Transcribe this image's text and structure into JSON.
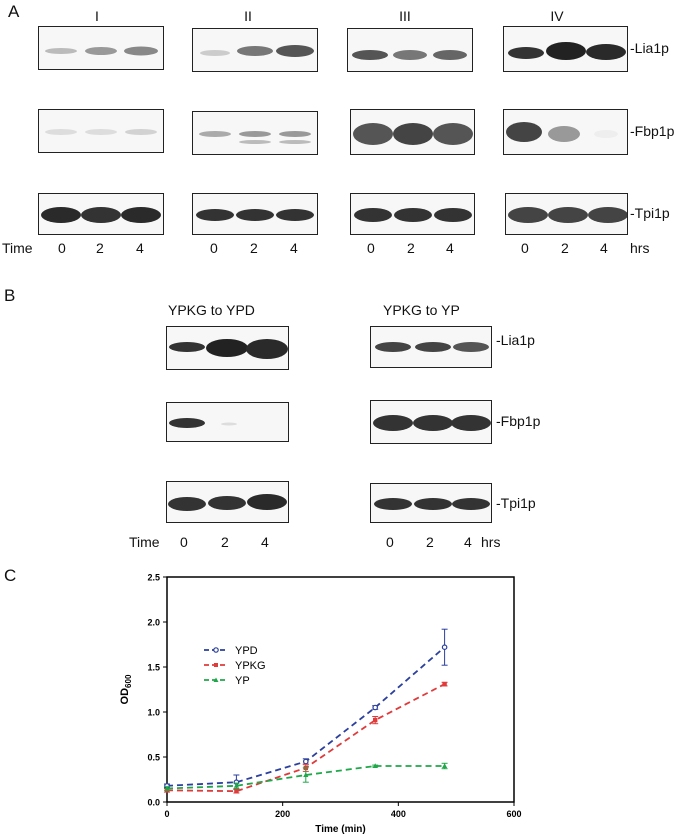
{
  "panel_a": {
    "letter": "A",
    "groups": [
      "I",
      "II",
      "III",
      "IV"
    ],
    "proteins": [
      "-Lia1p",
      "-Fbp1p",
      "-Tpi1p"
    ],
    "time_word": "Time",
    "times": [
      "0",
      "2",
      "4"
    ],
    "unit": "hrs"
  },
  "panel_b": {
    "letter": "B",
    "conditions": [
      "YPKG to YPD",
      "YPKG to YP"
    ],
    "proteins": [
      "-Lia1p",
      "-Fbp1p",
      "-Tpi1p"
    ],
    "time_word": "Time",
    "times": [
      "0",
      "2",
      "4"
    ],
    "unit": "hrs"
  },
  "panel_c": {
    "letter": "C"
  },
  "chart_data": {
    "type": "line",
    "xlabel": "Time (min)",
    "ylabel": "OD600",
    "ylabel_main": "OD",
    "ylabel_sub": "600",
    "xlim": [
      0,
      600
    ],
    "ylim": [
      0,
      2.5
    ],
    "xticks": [
      "0",
      "200",
      "400",
      "600"
    ],
    "yticks": [
      "0.0",
      "0.5",
      "1.0",
      "1.5",
      "2.0",
      "2.5"
    ],
    "legend_position": "top-left",
    "series": [
      {
        "name": "YPD",
        "color": "#2b3f9e",
        "x": [
          0,
          120,
          240,
          360,
          480
        ],
        "y": [
          0.18,
          0.22,
          0.45,
          1.05,
          1.72
        ],
        "err": [
          0.02,
          0.08,
          0.03,
          0.02,
          0.2
        ]
      },
      {
        "name": "YPKG",
        "color": "#e03a3a",
        "x": [
          0,
          120,
          240,
          360,
          480
        ],
        "y": [
          0.13,
          0.12,
          0.38,
          0.91,
          1.31
        ],
        "err": [
          0.02,
          0.02,
          0.04,
          0.04,
          0.02
        ]
      },
      {
        "name": "YP",
        "color": "#1fa84a",
        "x": [
          0,
          120,
          240,
          360,
          480
        ],
        "y": [
          0.15,
          0.18,
          0.3,
          0.4,
          0.4
        ],
        "err": [
          0.02,
          0.03,
          0.08,
          0.01,
          0.03
        ]
      }
    ]
  }
}
